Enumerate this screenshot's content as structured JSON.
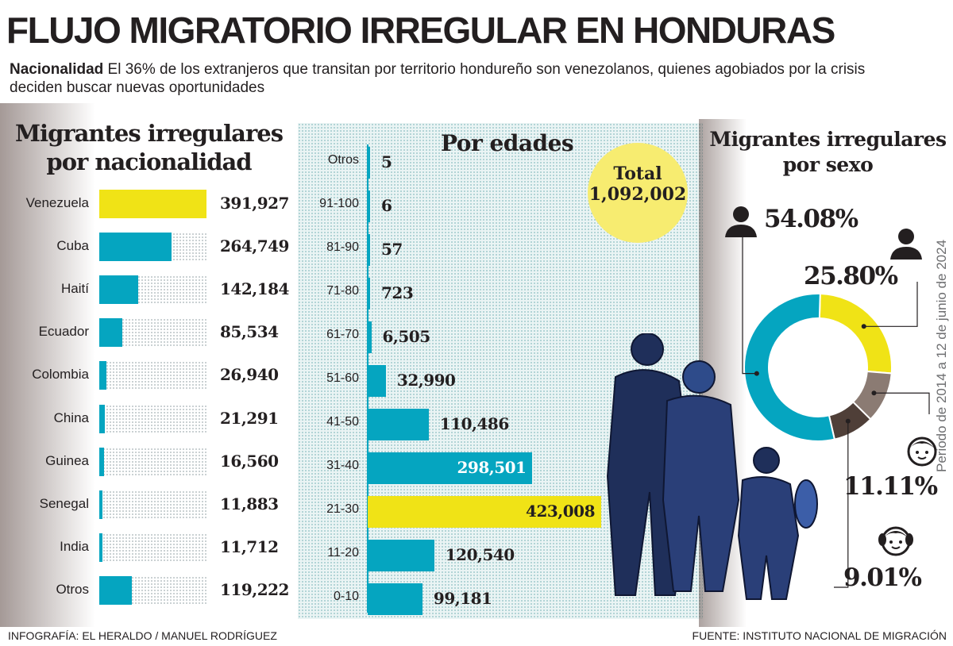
{
  "title": "FLUJO MIGRATORIO IRREGULAR EN HONDURAS",
  "subtitle": {
    "lead": "Nacionalidad",
    "text": " El 36% de los extranjeros que transitan por territorio hondureño son venezolanos, quienes agobiados por la crisis deciden buscar nuevas oportunidades"
  },
  "colors": {
    "yellow": "#f0e316",
    "teal": "#05a5c0",
    "brown_light": "#8b7b73",
    "brown_dark": "#4f3f38"
  },
  "chart_data": [
    {
      "type": "bar",
      "orientation": "horizontal",
      "title": "Migrantes irregulares por nacionalidad",
      "categories": [
        "Venezuela",
        "Cuba",
        "Haití",
        "Ecuador",
        "Colombia",
        "China",
        "Guinea",
        "Senegal",
        "India",
        "Otros"
      ],
      "values": [
        391927,
        264749,
        142184,
        85534,
        26940,
        21291,
        16560,
        11883,
        11712,
        119222
      ],
      "labels": [
        "391,927",
        "264,749",
        "142,184",
        "85,534",
        "26,940",
        "21,291",
        "16,560",
        "11,883",
        "11,712",
        "119,222"
      ],
      "highlight": "Venezuela"
    },
    {
      "type": "bar",
      "orientation": "horizontal",
      "title": "Por edades",
      "categories": [
        "Otros",
        "91-100",
        "81-90",
        "71-80",
        "61-70",
        "51-60",
        "41-50",
        "31-40",
        "21-30",
        "11-20",
        "0-10"
      ],
      "values": [
        5,
        6,
        57,
        723,
        6505,
        32990,
        110486,
        298501,
        423008,
        120540,
        99181
      ],
      "labels": [
        "5",
        "6",
        "57",
        "723",
        "6,505",
        "32,990",
        "110,486",
        "298,501",
        "423,008",
        "120,540",
        "99,181"
      ],
      "highlight": "21-30",
      "total": {
        "label": "Total",
        "value": "1,092,002"
      }
    },
    {
      "type": "pie",
      "variant": "donut",
      "title": "Migrantes irregulares por sexo",
      "slices": [
        {
          "icon": "man-icon",
          "value": 54.08,
          "label": "54.08%",
          "color": "#05a5c0"
        },
        {
          "icon": "woman-icon",
          "value": 25.8,
          "label": "25.80%",
          "color": "#f0e316"
        },
        {
          "icon": "boy-icon",
          "value": 11.11,
          "label": "11.11%",
          "color": "#8b7b73"
        },
        {
          "icon": "girl-icon",
          "value": 9.01,
          "label": "9.01%",
          "color": "#4f3f38"
        }
      ]
    }
  ],
  "period": "Periodo de 2014 a 12 de junio de 2024",
  "footer": {
    "credit": "INFOGRAFÍA: EL HERALDO / MANUEL RODRÍGUEZ",
    "source": "FUENTE: INSTITUTO NACIONAL DE MIGRACIÓN"
  }
}
